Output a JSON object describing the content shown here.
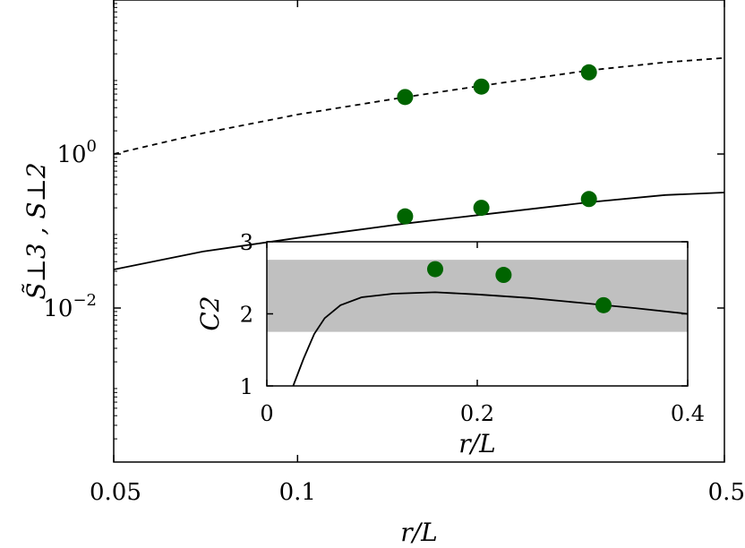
{
  "chart_data": [
    {
      "type": "line",
      "xlabel": "r/L",
      "ylabel": "S̃⊥3 , S⊥2",
      "xscale": "log",
      "yscale": "log",
      "xlim": [
        0.05,
        0.5
      ],
      "ylim": [
        0.0001,
        100
      ],
      "x_ticks": [
        {
          "value": 0.05,
          "label": "0.05"
        },
        {
          "value": 0.1,
          "label": "0.1"
        },
        {
          "value": 0.5,
          "label": "0.5"
        }
      ],
      "y_ticks": [
        {
          "value": 1,
          "label": "10",
          "exp": "0"
        },
        {
          "value": 0.01,
          "label": "10",
          "exp": "−2"
        }
      ],
      "grid": false,
      "curves": [
        {
          "style": "dashed",
          "color": "#000000",
          "x": [
            0.05,
            0.07,
            0.1,
            0.15,
            0.2,
            0.3,
            0.4,
            0.5
          ],
          "y": [
            1.0,
            1.86,
            3.26,
            5.47,
            7.7,
            12.2,
            15.5,
            17.7
          ]
        },
        {
          "style": "solid",
          "color": "#000000",
          "x": [
            0.05,
            0.07,
            0.1,
            0.15,
            0.2,
            0.3,
            0.4,
            0.5
          ],
          "y": [
            0.0316,
            0.0542,
            0.0813,
            0.125,
            0.163,
            0.236,
            0.293,
            0.316
          ]
        }
      ],
      "points": [
        {
          "x": 0.15,
          "y": 5.5,
          "color": "#006400"
        },
        {
          "x": 0.2,
          "y": 7.5,
          "color": "#006400"
        },
        {
          "x": 0.3,
          "y": 11.5,
          "color": "#006400"
        },
        {
          "x": 0.15,
          "y": 0.155,
          "color": "#006400"
        },
        {
          "x": 0.2,
          "y": 0.2,
          "color": "#006400"
        },
        {
          "x": 0.3,
          "y": 0.26,
          "color": "#006400"
        }
      ]
    },
    {
      "type": "line",
      "inset": true,
      "xlabel": "r/L",
      "ylabel": "C2",
      "xlim": [
        0,
        0.4
      ],
      "ylim": [
        1,
        3
      ],
      "x_ticks": [
        {
          "value": 0,
          "label": "0"
        },
        {
          "value": 0.2,
          "label": "0.2"
        },
        {
          "value": 0.4,
          "label": "0.4"
        }
      ],
      "y_ticks": [
        {
          "value": 1,
          "label": "1"
        },
        {
          "value": 2,
          "label": "2"
        },
        {
          "value": 3,
          "label": "3"
        }
      ],
      "band": {
        "y_low": 1.75,
        "y_high": 2.75,
        "color": "#c0c0c0"
      },
      "curve": {
        "style": "solid",
        "color": "#000000",
        "x": [
          0.025,
          0.035,
          0.045,
          0.055,
          0.07,
          0.09,
          0.12,
          0.16,
          0.2,
          0.25,
          0.3,
          0.35,
          0.4
        ],
        "y": [
          1.0,
          1.38,
          1.72,
          1.94,
          2.12,
          2.23,
          2.28,
          2.3,
          2.27,
          2.22,
          2.15,
          2.08,
          2.0
        ]
      },
      "points": [
        {
          "x": 0.16,
          "y": 2.62,
          "color": "#006400"
        },
        {
          "x": 0.225,
          "y": 2.54,
          "color": "#006400"
        },
        {
          "x": 0.32,
          "y": 2.12,
          "color": "#006400"
        }
      ]
    }
  ]
}
